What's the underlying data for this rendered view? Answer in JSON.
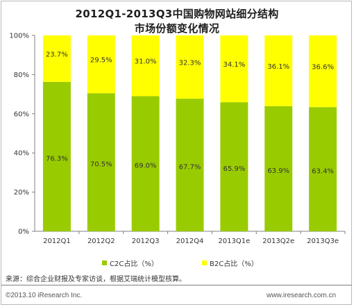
{
  "header": {
    "title_line1": "2012Q1-2013Q3中国购物网站细分结构",
    "title_line2": "市场份额变化情况"
  },
  "legend": {
    "c2c": "C2C占比（%）",
    "b2c": "B2C占比（%）"
  },
  "source": "来源：综合企业财报及专家访谈，根据艾瑞统计模型核算。",
  "footer": {
    "copyright": "©2013.10 iResearch Inc.",
    "website": "www.iresearch.com.cn"
  },
  "colors": {
    "c2c": "#99cc00",
    "b2c": "#ffff00",
    "axis": "#808080"
  },
  "chart_data": {
    "type": "bar",
    "stacked": true,
    "title": "2012Q1-2013Q3中国购物网站细分结构市场份额变化情况",
    "categories": [
      "2012Q1",
      "2012Q2",
      "2012Q3",
      "2012Q4",
      "2013Q1e",
      "2013Q2e",
      "2013Q3e"
    ],
    "series": [
      {
        "name": "C2C占比（%）",
        "values": [
          76.3,
          70.5,
          69.0,
          67.7,
          65.9,
          63.9,
          63.4
        ],
        "labels": [
          "76.3%",
          "70.5%",
          "69.0%",
          "67.7%",
          "65.9%",
          "63.9%",
          "63.4%"
        ]
      },
      {
        "name": "B2C占比（%）",
        "values": [
          23.7,
          29.5,
          31.0,
          32.3,
          34.1,
          36.1,
          36.6
        ],
        "labels": [
          "23.7%",
          "29.5%",
          "31.0%",
          "32.3%",
          "34.1%",
          "36.1%",
          "36.6%"
        ]
      }
    ],
    "ylim": [
      0,
      100
    ],
    "yticks": [
      "0%",
      "20%",
      "40%",
      "60%",
      "80%",
      "100%"
    ],
    "ytick_values": [
      0,
      20,
      40,
      60,
      80,
      100
    ],
    "legend_position": "bottom",
    "grid": false
  }
}
